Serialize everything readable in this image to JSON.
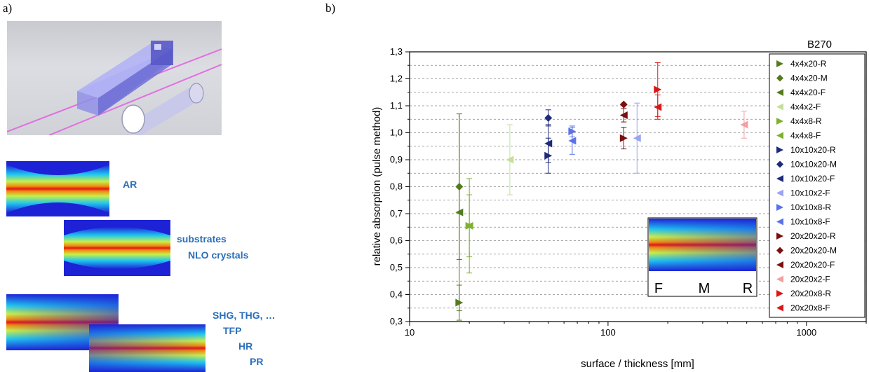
{
  "panel_a": {
    "label": "a)",
    "heatmaps": [
      {
        "labels": [
          "AR"
        ]
      },
      {
        "labels": [
          "substrates",
          "NLO crystals"
        ]
      },
      {
        "labels": [
          "SHG, THG, …",
          "TFP",
          "HR",
          "PR"
        ]
      }
    ]
  },
  "panel_b": {
    "label": "b)",
    "inset_labels": [
      "F",
      "M",
      "R"
    ]
  },
  "colors": {
    "group_4x4": "#557a1f",
    "group_4x4_light": "#c4df9b",
    "group_4x4_mid": "#7fb030",
    "group_10x10": "#1f2a7a",
    "group_10x10_light": "#9aa4f2",
    "group_10x10_mid": "#5a72e8",
    "group_20x20": "#7a1010",
    "group_20x20_light": "#f2a0a0",
    "group_20x20_mid": "#d81818",
    "grid": "#888888",
    "heat_text": "#2a6ebb"
  },
  "chart_data": {
    "type": "scatter",
    "title": "B270",
    "xlabel": "surface / thickness [mm]",
    "ylabel": "relative absorption (pulse method)",
    "xscale": "log",
    "xlim": [
      10,
      2000
    ],
    "ylim": [
      0.3,
      1.3
    ],
    "xticks": [
      "10",
      "100",
      "1000"
    ],
    "yticks": [
      "0,3",
      "0,4",
      "0,5",
      "0,6",
      "0,7",
      "0,8",
      "0,9",
      "1,0",
      "1,1",
      "1,2",
      "1,3"
    ],
    "grid": "horizontal dashed",
    "legend_position": "right",
    "series": [
      {
        "name": "4x4x20-R",
        "marker": "triangle-right",
        "color": "#557a1f",
        "x": 17.8,
        "y": 0.37,
        "err": 0.065
      },
      {
        "name": "4x4x20-M",
        "marker": "diamond",
        "color": "#557a1f",
        "x": 17.8,
        "y": 0.8,
        "err": 0.27
      },
      {
        "name": "4x4x20-F",
        "marker": "triangle-left",
        "color": "#557a1f",
        "x": 17.8,
        "y": 0.705,
        "err": 0.365
      },
      {
        "name": "4x4x2-F",
        "marker": "triangle-left",
        "color": "#c4df9b",
        "x": 32,
        "y": 0.9,
        "err": 0.13
      },
      {
        "name": "4x4x8-R",
        "marker": "triangle-right",
        "color": "#7fb030",
        "x": 20,
        "y": 0.655,
        "err": 0.175
      },
      {
        "name": "4x4x8-F",
        "marker": "triangle-left",
        "color": "#7fb030",
        "x": 20,
        "y": 0.655,
        "err": 0.115
      },
      {
        "name": "10x10x20-R",
        "marker": "triangle-right",
        "color": "#1f2a7a",
        "x": 50,
        "y": 0.915,
        "err": 0.065
      },
      {
        "name": "10x10x20-M",
        "marker": "diamond",
        "color": "#1f2a7a",
        "x": 50,
        "y": 1.055,
        "err": 0.03
      },
      {
        "name": "10x10x20-F",
        "marker": "triangle-left",
        "color": "#1f2a7a",
        "x": 50,
        "y": 0.96,
        "err": 0.07
      },
      {
        "name": "10x10x2-F",
        "marker": "triangle-left",
        "color": "#9aa4f2",
        "x": 140,
        "y": 0.98,
        "err": 0.13
      },
      {
        "name": "10x10x8-R",
        "marker": "triangle-right",
        "color": "#5a72e8",
        "x": 66,
        "y": 1.005,
        "err": 0.02
      },
      {
        "name": "10x10x8-F",
        "marker": "triangle-left",
        "color": "#5a72e8",
        "x": 66,
        "y": 0.97,
        "err": 0.05
      },
      {
        "name": "20x20x20-R",
        "marker": "triangle-right",
        "color": "#7a1010",
        "x": 120,
        "y": 0.98,
        "err": 0.04
      },
      {
        "name": "20x20x20-M",
        "marker": "diamond",
        "color": "#7a1010",
        "x": 120,
        "y": 1.105,
        "err": 0.0
      },
      {
        "name": "20x20x20-F",
        "marker": "triangle-left",
        "color": "#7a1010",
        "x": 120,
        "y": 1.065,
        "err": 0.025
      },
      {
        "name": "20x20x2-F",
        "marker": "triangle-left",
        "color": "#f2a0a0",
        "x": 485,
        "y": 1.03,
        "err": 0.05
      },
      {
        "name": "20x20x8-R",
        "marker": "triangle-right",
        "color": "#d81818",
        "x": 178,
        "y": 1.16,
        "err": 0.1
      },
      {
        "name": "20x20x8-F",
        "marker": "triangle-left",
        "color": "#d81818",
        "x": 178,
        "y": 1.095,
        "err": 0.045
      }
    ]
  }
}
